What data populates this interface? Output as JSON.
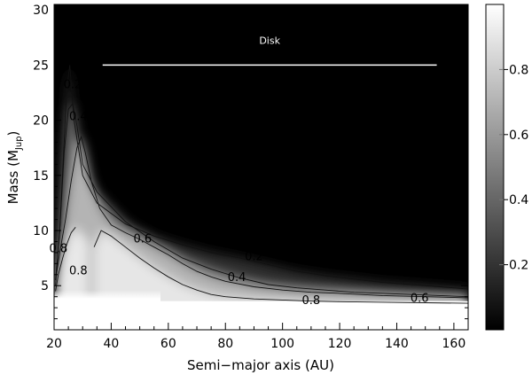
{
  "chart_data": {
    "type": "heatmap",
    "title": "",
    "xlabel": "Semi−major axis (AU)",
    "ylabel_main": "Mass (M",
    "ylabel_sub": "Jup",
    "ylabel_close": ")",
    "xlim": [
      20,
      165
    ],
    "ylim": [
      1,
      30.5
    ],
    "xticks": [
      20,
      40,
      60,
      80,
      100,
      120,
      140,
      160
    ],
    "yticks": [
      5,
      10,
      15,
      20,
      25,
      30
    ],
    "colorbar": {
      "range": [
        0,
        1
      ],
      "ticks": [
        0.2,
        0.4,
        0.6,
        0.8
      ],
      "colormap": "grayscale (black = 0, white = 1)"
    },
    "contour_levels": [
      0.2,
      0.4,
      0.6,
      0.8
    ],
    "contour_labels": [
      {
        "text": "0.2",
        "x": 26.5,
        "y": 23.2
      },
      {
        "text": "0.4",
        "x": 28.5,
        "y": 20.3
      },
      {
        "text": "0.6",
        "x": 51,
        "y": 9.2
      },
      {
        "text": "0.8",
        "x": 28.5,
        "y": 6.3
      },
      {
        "text": "0.8",
        "x": 21.5,
        "y": 8.3
      },
      {
        "text": "0.2",
        "x": 90,
        "y": 7.6
      },
      {
        "text": "0.4",
        "x": 84,
        "y": 5.7
      },
      {
        "text": "0.8",
        "x": 110,
        "y": 3.6
      },
      {
        "text": "0.6",
        "x": 148,
        "y": 3.8
      }
    ],
    "contours": [
      {
        "level": 0.2,
        "x": [
          20.5,
          22,
          23.5,
          24.5,
          25.5,
          27,
          30,
          35,
          45,
          55,
          65,
          75,
          85,
          95,
          105,
          115,
          125,
          135,
          145,
          155,
          165
        ],
        "y": [
          5.5,
          10,
          18,
          23,
          25,
          20,
          15,
          12.5,
          10.6,
          9.5,
          8.7,
          8.0,
          7.5,
          6.9,
          6.3,
          5.9,
          5.6,
          5.3,
          5.1,
          4.9,
          4.7
        ]
      },
      {
        "level": 0.4,
        "x": [
          20.5,
          22,
          23.5,
          25,
          26.5,
          28,
          30,
          35,
          45,
          55,
          65,
          75,
          85,
          95,
          105,
          115,
          125,
          135,
          145,
          155,
          165
        ],
        "y": [
          5.0,
          10,
          17,
          21,
          21.5,
          19.5,
          16,
          13.5,
          10.8,
          9.0,
          7.5,
          6.5,
          5.7,
          5.1,
          4.8,
          4.6,
          4.4,
          4.3,
          4.2,
          4.1,
          4.0
        ]
      },
      {
        "level": 0.6,
        "x": [
          20.5,
          22,
          24,
          26,
          28,
          29.5,
          31,
          33,
          36,
          40,
          45,
          50,
          55,
          60,
          65,
          70,
          75,
          80,
          90,
          100,
          110,
          120,
          135,
          150,
          165
        ],
        "y": [
          5.5,
          8,
          11,
          14.5,
          17.5,
          18.5,
          17,
          14.5,
          12,
          10.5,
          9.8,
          9.2,
          8.5,
          7.8,
          7.0,
          6.3,
          5.8,
          5.4,
          4.9,
          4.6,
          4.4,
          4.3,
          4.1,
          4.0,
          3.9
        ]
      },
      {
        "level": 0.8,
        "x": [
          20.5,
          21.5,
          23,
          24.5,
          26,
          27.5
        ],
        "y": [
          4.5,
          6.0,
          7.5,
          8.8,
          9.8,
          10.3
        ]
      },
      {
        "level": 0.8,
        "x": [
          34,
          36.5,
          40,
          45,
          50,
          55,
          60,
          65,
          70,
          75,
          80,
          90,
          100,
          110,
          120,
          135,
          150,
          165
        ],
        "y": [
          8.5,
          10.0,
          9.5,
          8.5,
          7.5,
          6.6,
          5.8,
          5.1,
          4.6,
          4.2,
          4.0,
          3.8,
          3.7,
          3.6,
          3.55,
          3.5,
          3.45,
          3.4
        ]
      }
    ],
    "annotations": [
      {
        "type": "hline",
        "label": "Disk",
        "x": [
          37,
          154
        ],
        "y": 25
      }
    ]
  }
}
